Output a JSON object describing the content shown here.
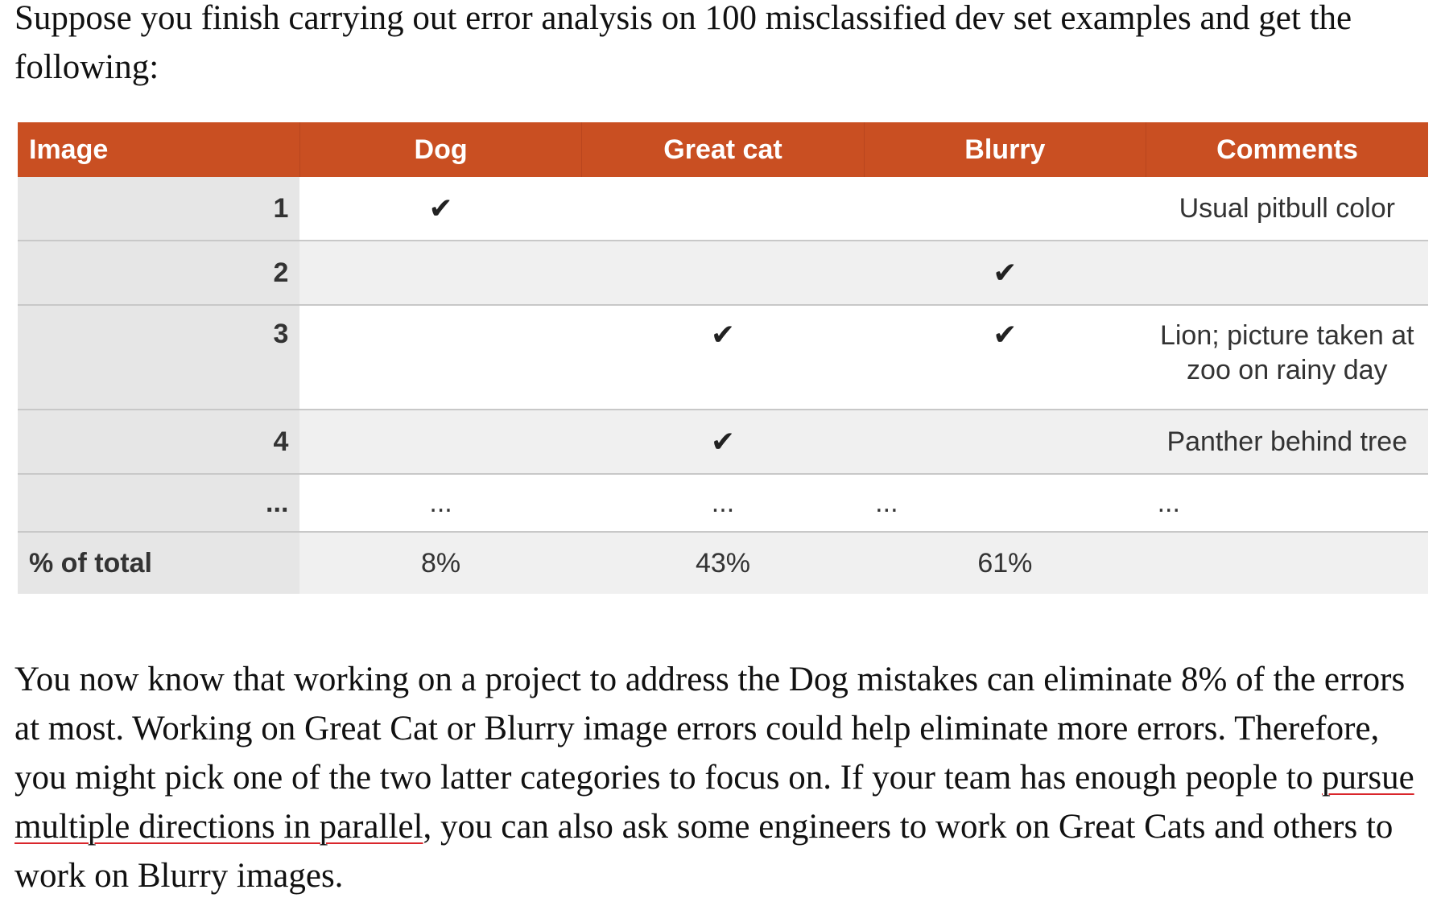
{
  "intro_text": "Suppose you finish carrying out error analysis on 100 misclassified dev set examples and get the following:",
  "table": {
    "headers": [
      "Image",
      "Dog",
      "Great cat",
      "Blurry",
      "Comments"
    ],
    "rows": [
      {
        "image": "1",
        "dog": "✔",
        "great_cat": "",
        "blurry": "",
        "comments": "Usual pitbull color"
      },
      {
        "image": "2",
        "dog": "",
        "great_cat": "",
        "blurry": "✔",
        "comments": ""
      },
      {
        "image": "3",
        "dog": "",
        "great_cat": "✔",
        "blurry": "✔",
        "comments": "Lion; picture taken at zoo on rainy day"
      },
      {
        "image": "4",
        "dog": "",
        "great_cat": "✔",
        "blurry": "",
        "comments": "Panther behind tree"
      },
      {
        "image": "...",
        "dog": "...",
        "great_cat": "...",
        "blurry": "...",
        "comments": "..."
      }
    ],
    "total_row": {
      "label": "% of total",
      "dog": "8%",
      "great_cat": "43%",
      "blurry": "61%",
      "comments": ""
    }
  },
  "outro": {
    "before_link": "You now know that working on a project to address the Dog mistakes can eliminate 8% of the errors at most. Working on Great Cat or Blurry image errors could help eliminate more errors. Therefore, you might pick one of the two latter categories to focus on. If your team has enough people to ",
    "link_text": "pursue multiple directions in parallel",
    "after_link": ", you can also ask some engineers to work on Great Cats and others to work on Blurry images."
  },
  "colors": {
    "header_bg": "#c94f22",
    "link_underline": "#d9262b"
  }
}
